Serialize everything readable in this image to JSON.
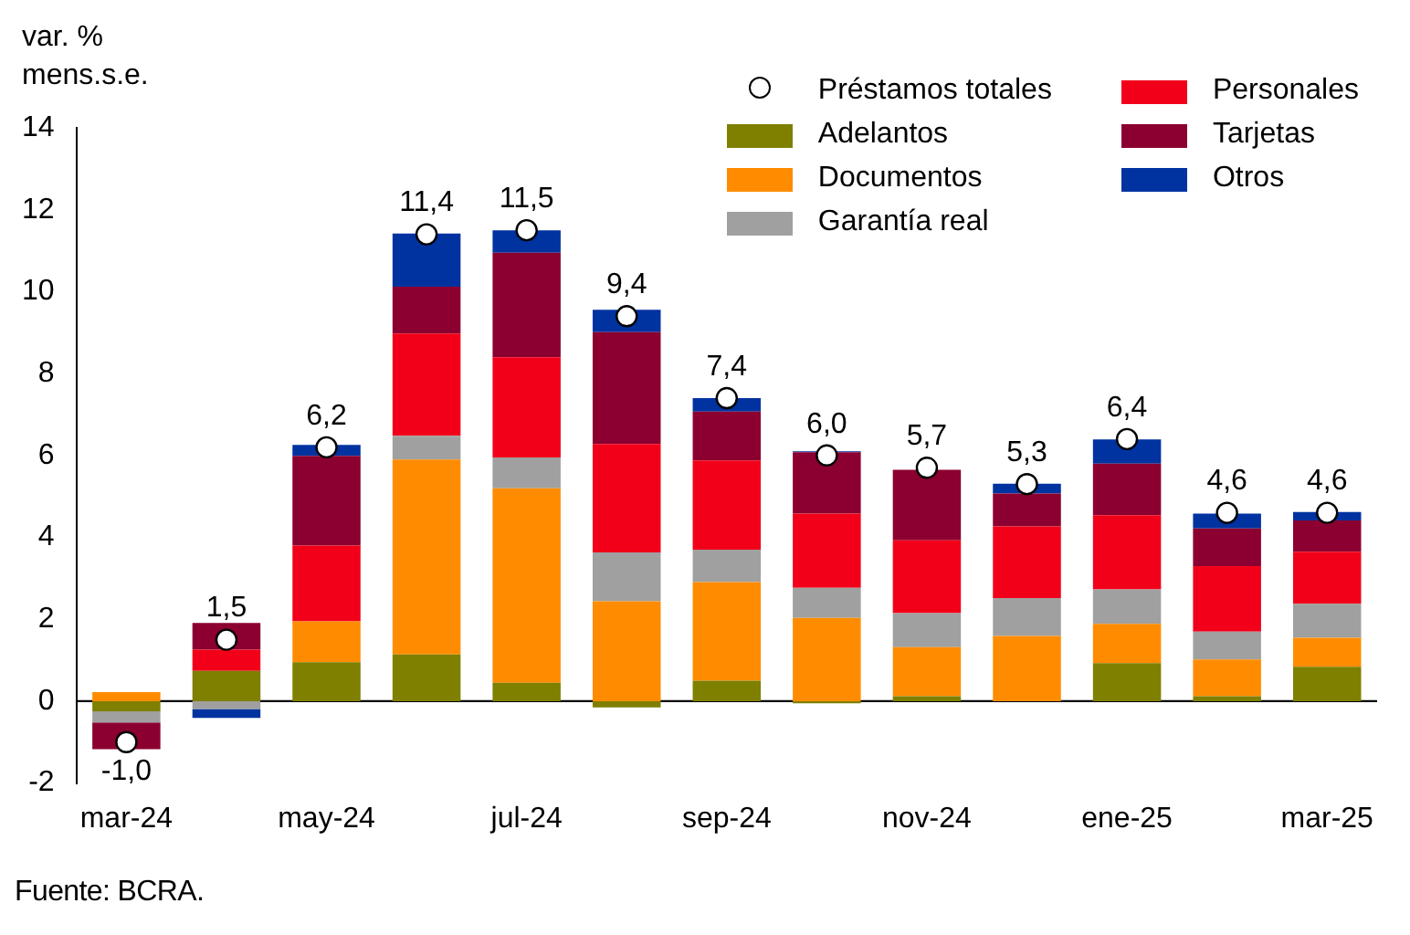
{
  "chart_data": {
    "type": "bar",
    "stacked": true,
    "ylabel": "var. %\nmens.s.e.",
    "categories": [
      "mar-24",
      null,
      "may-24",
      null,
      "jul-24",
      null,
      "sep-24",
      null,
      "nov-24",
      null,
      "ene-25",
      null,
      "mar-25"
    ],
    "ylim": [
      -2,
      14
    ],
    "yticks": [
      -2,
      0,
      2,
      4,
      6,
      8,
      10,
      12,
      14
    ],
    "grid": false,
    "legend": "top right",
    "marker": "circle",
    "series": [
      {
        "name": "Préstamos totales",
        "type": "scatter",
        "color": "#ffffff",
        "values": [
          -1.0,
          1.5,
          6.2,
          11.4,
          11.5,
          9.4,
          7.4,
          6.0,
          5.7,
          5.3,
          6.4,
          4.6,
          4.6
        ],
        "value_labels": [
          "-1,0",
          "1,5",
          "6,2",
          "11,4",
          "11,5",
          "9,4",
          "7,4",
          "6,0",
          "5,7",
          "5,3",
          "6,4",
          "4,6",
          "4,6"
        ]
      },
      {
        "name": "Adelantos",
        "color": "#7f7f00",
        "values": [
          -0.25,
          0.74,
          0.95,
          1.14,
          0.45,
          -0.15,
          0.5,
          -0.05,
          0.12,
          0,
          0.93,
          0.12,
          0.84
        ]
      },
      {
        "name": "Documentos",
        "color": "#ff8c00",
        "values": [
          0.22,
          0,
          1.0,
          4.76,
          4.75,
          2.44,
          2.41,
          2.03,
          1.2,
          1.59,
          0.96,
          0.9,
          0.71
        ]
      },
      {
        "name": "Garantía real",
        "color": "#a0a0a0",
        "values": [
          -0.27,
          -0.19,
          0,
          0.58,
          0.75,
          1.19,
          0.79,
          0.74,
          0.83,
          0.93,
          0.84,
          0.68,
          0.83
        ]
      },
      {
        "name": "Personales",
        "color": "#f20019",
        "values": [
          0,
          0.52,
          1.85,
          2.5,
          2.45,
          2.65,
          2.18,
          1.81,
          1.78,
          1.75,
          1.81,
          1.6,
          1.27
        ]
      },
      {
        "name": "Tarjetas",
        "color": "#8b0030",
        "values": [
          -0.65,
          0.65,
          2.19,
          1.14,
          2.55,
          2.73,
          1.19,
          1.5,
          1.72,
          0.8,
          1.26,
          0.92,
          0.76
        ]
      },
      {
        "name": "Otros",
        "color": "#0033a0",
        "values": [
          0,
          -0.22,
          0.27,
          1.3,
          0.55,
          0.55,
          0.33,
          0.02,
          0,
          0.24,
          0.59,
          0.36,
          0.21
        ]
      }
    ],
    "ref_lines": [
      {
        "axis": "y",
        "value": 0,
        "color": "#000000",
        "line_style": "solid"
      }
    ],
    "annotations": [
      "Fuente: BCRA."
    ]
  }
}
